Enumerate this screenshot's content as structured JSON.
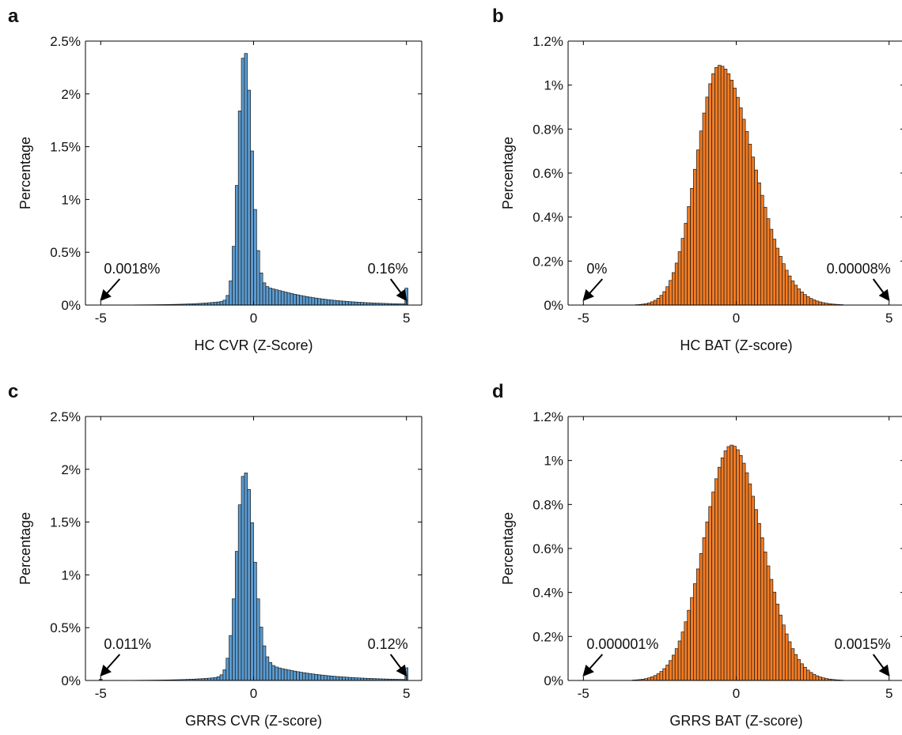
{
  "chart_data": [
    {
      "panel": "a",
      "type": "bar",
      "color": "#5b9bd0",
      "xlabel": "HC CVR (Z-Score)",
      "ylabel": "Percentage",
      "xlim": [
        -5.5,
        5.5
      ],
      "ylim": [
        0,
        2.5
      ],
      "xticks": [
        -5,
        0,
        5
      ],
      "xtick_labels": [
        "-5",
        "0",
        "5"
      ],
      "yticks": [
        0,
        0.5,
        1,
        1.5,
        2,
        2.5
      ],
      "ytick_labels": [
        "0%",
        "0.5%",
        "1%",
        "1.5%",
        "2%",
        "2.5%"
      ],
      "bin_width": 0.1,
      "shape": {
        "kind": "peaked",
        "mu": -0.3,
        "sl": 0.2,
        "sr": 0.23,
        "peak": 2.4,
        "tail_amp": 0.3,
        "tail_scale": 1.55
      },
      "edge_bins": {
        "left": 0.0018,
        "right": 0.16
      },
      "annotations": [
        {
          "text": "0.0018%",
          "x": -5
        },
        {
          "text": "0.16%",
          "x": 5
        }
      ]
    },
    {
      "panel": "b",
      "type": "bar",
      "color": "#f07c24",
      "xlabel": "HC BAT (Z-score)",
      "ylabel": "Percentage",
      "xlim": [
        -5.5,
        5.5
      ],
      "ylim": [
        0,
        1.2
      ],
      "xticks": [
        -5,
        0,
        5
      ],
      "xtick_labels": [
        "-5",
        "0",
        "5"
      ],
      "yticks": [
        0,
        0.2,
        0.4,
        0.6,
        0.8,
        1,
        1.2
      ],
      "ytick_labels": [
        "0%",
        "0.2%",
        "0.4%",
        "0.6%",
        "0.8%",
        "1%",
        "1.2%"
      ],
      "bin_width": 0.1,
      "shape": {
        "kind": "skewnormal",
        "mu": -0.55,
        "sl": 0.75,
        "sr": 1.12,
        "peak": 1.09
      },
      "edge_bins": {
        "left": 0,
        "right": 8e-05
      },
      "annotations": [
        {
          "text": "0%",
          "x": -5
        },
        {
          "text": "0.00008%",
          "x": 5
        }
      ]
    },
    {
      "panel": "c",
      "type": "bar",
      "color": "#5b9bd0",
      "xlabel": "GRRS CVR (Z-score)",
      "ylabel": "Percentage",
      "xlim": [
        -5.5,
        5.5
      ],
      "ylim": [
        0,
        2.5
      ],
      "xticks": [
        -5,
        0,
        5
      ],
      "xtick_labels": [
        "-5",
        "0",
        "5"
      ],
      "yticks": [
        0,
        0.5,
        1,
        1.5,
        2,
        2.5
      ],
      "ytick_labels": [
        "0%",
        "0.5%",
        "1%",
        "1.5%",
        "2%",
        "2.5%"
      ],
      "bin_width": 0.1,
      "shape": {
        "kind": "peaked",
        "mu": -0.3,
        "sl": 0.25,
        "sr": 0.3,
        "peak": 1.96,
        "tail_amp": 0.25,
        "tail_scale": 1.6
      },
      "edge_bins": {
        "left": 0.011,
        "right": 0.12
      },
      "annotations": [
        {
          "text": "0.011%",
          "x": -5
        },
        {
          "text": "0.12%",
          "x": 5
        }
      ]
    },
    {
      "panel": "d",
      "type": "bar",
      "color": "#f07c24",
      "xlabel": "GRRS BAT (Z-score)",
      "ylabel": "Percentage",
      "xlim": [
        -5.5,
        5.5
      ],
      "ylim": [
        0,
        1.2
      ],
      "xticks": [
        -5,
        0,
        5
      ],
      "xtick_labels": [
        "-5",
        "0",
        "5"
      ],
      "yticks": [
        0,
        0.2,
        0.4,
        0.6,
        0.8,
        1,
        1.2
      ],
      "ytick_labels": [
        "0%",
        "0.2%",
        "0.4%",
        "0.6%",
        "0.8%",
        "1%",
        "1.2%"
      ],
      "bin_width": 0.1,
      "shape": {
        "kind": "skewnormal",
        "mu": -0.15,
        "sl": 0.9,
        "sr": 1.0,
        "peak": 1.07
      },
      "edge_bins": {
        "left": 1e-06,
        "right": 0.0015
      },
      "annotations": [
        {
          "text": "0.000001%",
          "x": -5
        },
        {
          "text": "0.0015%",
          "x": 5
        }
      ]
    }
  ]
}
